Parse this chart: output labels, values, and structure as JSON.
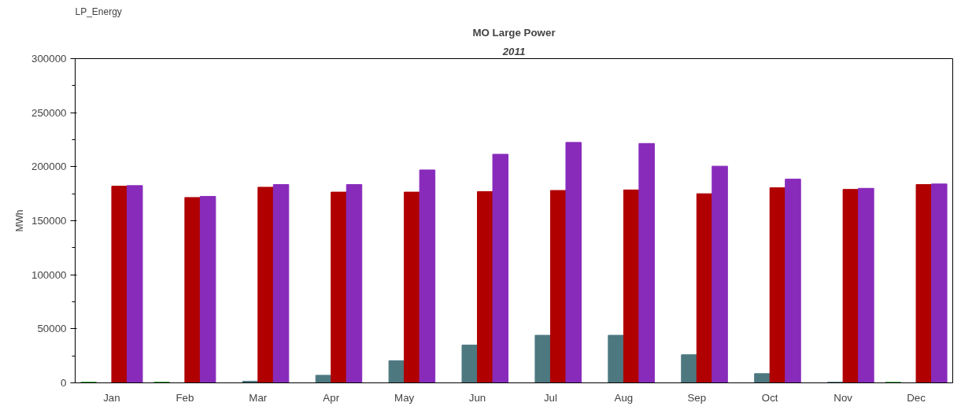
{
  "chart_data": {
    "type": "bar",
    "title": "MO Large Power",
    "subtitle": "2011",
    "ylabel": "MWh",
    "annotations": [
      "LP_Energy"
    ],
    "categories": [
      "Jan",
      "Feb",
      "Mar",
      "Apr",
      "May",
      "Jun",
      "Jul",
      "Aug",
      "Sep",
      "Oct",
      "Nov",
      "Dec"
    ],
    "series": [
      {
        "color": "#1a9a1a",
        "values": [
          600,
          600,
          null,
          null,
          null,
          null,
          null,
          null,
          null,
          null,
          null,
          500
        ]
      },
      {
        "color": "#4d7880",
        "values": [
          null,
          null,
          1500,
          7000,
          20500,
          35000,
          44000,
          44000,
          26000,
          8500,
          600,
          null
        ]
      },
      {
        "color": "#b00000",
        "values": [
          182000,
          171500,
          181000,
          176500,
          176500,
          177000,
          178000,
          178500,
          175000,
          180500,
          179000,
          183500
        ]
      },
      {
        "color": "#882bbb",
        "values": [
          182500,
          172500,
          183500,
          183500,
          197000,
          211500,
          222500,
          221500,
          200500,
          188500,
          180000,
          184000
        ]
      }
    ],
    "ylim": [
      0,
      300000
    ],
    "yticks": [
      0,
      50000,
      100000,
      150000,
      200000,
      250000,
      300000
    ],
    "grid": false
  }
}
